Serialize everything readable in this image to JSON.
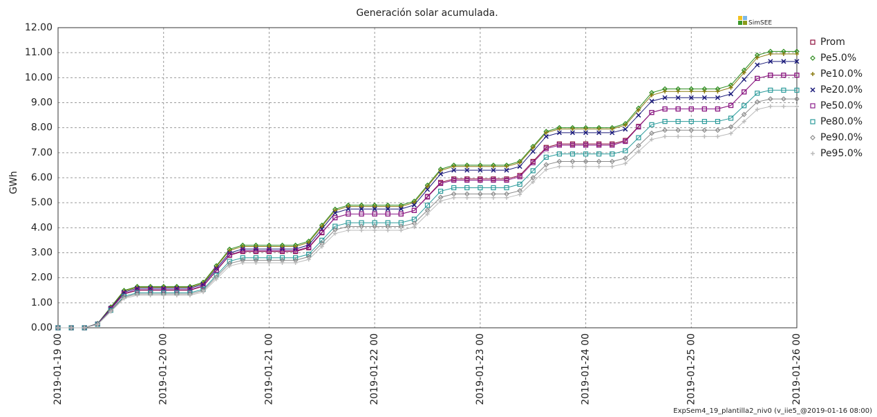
{
  "chart_data": {
    "type": "line",
    "title": "Generación solar acumulada.",
    "y_label": "GWh",
    "logo": "SimSEE",
    "footer": "ExpSem4_19_plantilla2_niv0 (v_iie5_@2019-01-16 08:00)",
    "grid": true,
    "x": [
      "2019-01-19 00",
      "2019-01-19 03",
      "2019-01-19 06",
      "2019-01-19 09",
      "2019-01-19 12",
      "2019-01-19 15",
      "2019-01-19 18",
      "2019-01-19 21",
      "2019-01-20 00",
      "2019-01-20 03",
      "2019-01-20 06",
      "2019-01-20 09",
      "2019-01-20 12",
      "2019-01-20 15",
      "2019-01-20 18",
      "2019-01-20 21",
      "2019-01-21 00",
      "2019-01-21 03",
      "2019-01-21 06",
      "2019-01-21 09",
      "2019-01-21 12",
      "2019-01-21 15",
      "2019-01-21 18",
      "2019-01-21 21",
      "2019-01-22 00",
      "2019-01-22 03",
      "2019-01-22 06",
      "2019-01-22 09",
      "2019-01-22 12",
      "2019-01-22 15",
      "2019-01-22 18",
      "2019-01-22 21",
      "2019-01-23 00",
      "2019-01-23 03",
      "2019-01-23 06",
      "2019-01-23 09",
      "2019-01-23 12",
      "2019-01-23 15",
      "2019-01-23 18",
      "2019-01-23 21",
      "2019-01-24 00",
      "2019-01-24 03",
      "2019-01-24 06",
      "2019-01-24 09",
      "2019-01-24 12",
      "2019-01-24 15",
      "2019-01-24 18",
      "2019-01-24 21",
      "2019-01-25 00",
      "2019-01-25 03",
      "2019-01-25 06",
      "2019-01-25 09",
      "2019-01-25 12",
      "2019-01-25 15",
      "2019-01-25 18",
      "2019-01-25 21",
      "2019-01-26 00"
    ],
    "xlim": [
      "2019-01-19 00",
      "2019-01-26 00"
    ],
    "xticks": [
      "2019-01-19 00",
      "2019-01-20 00",
      "2019-01-21 00",
      "2019-01-22 00",
      "2019-01-23 00",
      "2019-01-24 00",
      "2019-01-25 00",
      "2019-01-26 00"
    ],
    "ylim": [
      0,
      12
    ],
    "yticks": [
      {
        "value": 0,
        "label": "0.00"
      },
      {
        "value": 1,
        "label": "1.00"
      },
      {
        "value": 2,
        "label": "2.00"
      },
      {
        "value": 3,
        "label": "3.00"
      },
      {
        "value": 4,
        "label": "4.00"
      },
      {
        "value": 5,
        "label": "5.00"
      },
      {
        "value": 6,
        "label": "6.00"
      },
      {
        "value": 7,
        "label": "7.00"
      },
      {
        "value": 8,
        "label": "8.00"
      },
      {
        "value": 9,
        "label": "9.00"
      },
      {
        "value": 10,
        "label": "10.00"
      },
      {
        "value": 11,
        "label": "11.00"
      },
      {
        "value": 12,
        "label": "12.00"
      }
    ],
    "series": [
      {
        "name": "Prom",
        "color": "#8b0a3a",
        "marker": "square",
        "values": [
          0,
          0,
          0,
          0.15,
          0.75,
          1.35,
          1.5,
          1.5,
          1.5,
          1.5,
          1.5,
          1.66,
          2.28,
          2.9,
          3.05,
          3.05,
          3.05,
          3.05,
          3.05,
          3.2,
          3.8,
          4.4,
          4.55,
          4.55,
          4.55,
          4.55,
          4.55,
          4.69,
          5.25,
          5.81,
          5.95,
          5.95,
          5.95,
          5.95,
          5.95,
          6.09,
          6.65,
          7.21,
          7.35,
          7.35,
          7.35,
          7.35,
          7.35,
          7.49,
          8.05,
          8.61,
          8.75,
          8.75,
          8.75,
          8.75,
          8.75,
          8.89,
          9.43,
          9.97,
          10.1,
          10.1,
          10.1
        ]
      },
      {
        "name": "Pe5.0%",
        "color": "#2a8a1a",
        "marker": "diamond",
        "values": [
          0,
          0,
          0,
          0.17,
          0.83,
          1.49,
          1.65,
          1.65,
          1.65,
          1.65,
          1.65,
          1.82,
          2.48,
          3.14,
          3.3,
          3.3,
          3.3,
          3.3,
          3.3,
          3.46,
          4.1,
          4.74,
          4.9,
          4.9,
          4.9,
          4.9,
          4.9,
          5.06,
          5.7,
          6.34,
          6.5,
          6.5,
          6.5,
          6.5,
          6.5,
          6.65,
          7.25,
          7.85,
          8,
          8,
          8,
          8,
          8,
          8.16,
          8.78,
          9.4,
          9.55,
          9.55,
          9.55,
          9.55,
          9.55,
          9.7,
          10.3,
          10.9,
          11.05,
          11.05,
          11.05
        ]
      },
      {
        "name": "Pe10.0%",
        "color": "#8a7a10",
        "marker": "plus",
        "values": [
          0,
          0,
          0,
          0.16,
          0.81,
          1.46,
          1.62,
          1.62,
          1.62,
          1.62,
          1.62,
          1.78,
          2.44,
          3.09,
          3.25,
          3.25,
          3.25,
          3.25,
          3.25,
          3.41,
          4.05,
          4.69,
          4.85,
          4.85,
          4.85,
          4.85,
          4.85,
          5.01,
          5.65,
          6.29,
          6.45,
          6.45,
          6.45,
          6.45,
          6.45,
          6.6,
          7.2,
          7.8,
          7.95,
          7.95,
          7.95,
          7.95,
          7.95,
          8.1,
          8.7,
          9.3,
          9.45,
          9.45,
          9.45,
          9.45,
          9.45,
          9.6,
          10.2,
          10.8,
          10.95,
          10.95,
          10.95
        ]
      },
      {
        "name": "Pe20.0%",
        "color": "#1a1a7a",
        "marker": "cross",
        "values": [
          0,
          0,
          0,
          0.16,
          0.79,
          1.42,
          1.58,
          1.58,
          1.58,
          1.58,
          1.58,
          1.74,
          2.37,
          2.99,
          3.15,
          3.15,
          3.15,
          3.15,
          3.15,
          3.31,
          3.95,
          4.59,
          4.75,
          4.75,
          4.75,
          4.75,
          4.75,
          4.91,
          5.53,
          6.15,
          6.3,
          6.3,
          6.3,
          6.3,
          6.3,
          6.45,
          7.05,
          7.65,
          7.8,
          7.8,
          7.8,
          7.8,
          7.8,
          7.94,
          8.5,
          9.06,
          9.2,
          9.2,
          9.2,
          9.2,
          9.2,
          9.35,
          9.93,
          10.51,
          10.65,
          10.65,
          10.65
        ]
      },
      {
        "name": "Pe50.0%",
        "color": "#8a1a8a",
        "marker": "square",
        "values": [
          0,
          0,
          0,
          0.15,
          0.76,
          1.37,
          1.52,
          1.52,
          1.52,
          1.52,
          1.52,
          1.68,
          2.3,
          2.92,
          3.08,
          3.08,
          3.08,
          3.08,
          3.08,
          3.23,
          3.82,
          4.4,
          4.55,
          4.55,
          4.55,
          4.55,
          4.55,
          4.69,
          5.23,
          5.77,
          5.9,
          5.9,
          5.9,
          5.9,
          5.9,
          6.04,
          6.6,
          7.16,
          7.3,
          7.3,
          7.3,
          7.3,
          7.3,
          7.45,
          8.03,
          8.61,
          8.75,
          8.75,
          8.75,
          8.75,
          8.75,
          8.89,
          9.43,
          9.97,
          10.1,
          10.1,
          10.1
        ]
      },
      {
        "name": "Pe80.0%",
        "color": "#2a9a9a",
        "marker": "square",
        "values": [
          0,
          0,
          0,
          0.14,
          0.7,
          1.26,
          1.4,
          1.4,
          1.4,
          1.4,
          1.4,
          1.54,
          2.1,
          2.66,
          2.8,
          2.8,
          2.8,
          2.8,
          2.8,
          2.94,
          3.5,
          4.06,
          4.2,
          4.2,
          4.2,
          4.2,
          4.2,
          4.34,
          4.9,
          5.46,
          5.6,
          5.6,
          5.6,
          5.6,
          5.6,
          5.74,
          6.28,
          6.82,
          6.95,
          6.95,
          6.95,
          6.95,
          6.95,
          7.08,
          7.6,
          8.12,
          8.25,
          8.25,
          8.25,
          8.25,
          8.25,
          8.38,
          8.88,
          9.38,
          9.5,
          9.5,
          9.5
        ]
      },
      {
        "name": "Pe90.0%",
        "color": "#8a8a8a",
        "marker": "diamond",
        "values": [
          0,
          0,
          0,
          0.14,
          0.68,
          1.22,
          1.35,
          1.35,
          1.35,
          1.35,
          1.35,
          1.49,
          2.03,
          2.57,
          2.7,
          2.7,
          2.7,
          2.7,
          2.7,
          2.84,
          3.38,
          3.92,
          4.05,
          4.05,
          4.05,
          4.05,
          4.05,
          4.18,
          4.7,
          5.22,
          5.35,
          5.35,
          5.35,
          5.35,
          5.35,
          5.48,
          6,
          6.52,
          6.65,
          6.65,
          6.65,
          6.65,
          6.65,
          6.78,
          7.28,
          7.78,
          7.9,
          7.9,
          7.9,
          7.9,
          7.9,
          8.03,
          8.53,
          9.03,
          9.15,
          9.15,
          9.15
        ]
      },
      {
        "name": "Pe95.0%",
        "color": "#bbbbbb",
        "marker": "plus",
        "values": [
          0,
          0,
          0,
          0.13,
          0.65,
          1.17,
          1.3,
          1.3,
          1.3,
          1.3,
          1.3,
          1.43,
          1.95,
          2.47,
          2.6,
          2.6,
          2.6,
          2.6,
          2.6,
          2.73,
          3.25,
          3.77,
          3.9,
          3.9,
          3.9,
          3.9,
          3.9,
          4.03,
          4.55,
          5.07,
          5.2,
          5.2,
          5.2,
          5.2,
          5.2,
          5.33,
          5.83,
          6.33,
          6.45,
          6.45,
          6.45,
          6.45,
          6.45,
          6.57,
          7.05,
          7.53,
          7.65,
          7.65,
          7.65,
          7.65,
          7.65,
          7.77,
          8.25,
          8.73,
          8.85,
          8.85,
          8.85
        ]
      }
    ]
  }
}
